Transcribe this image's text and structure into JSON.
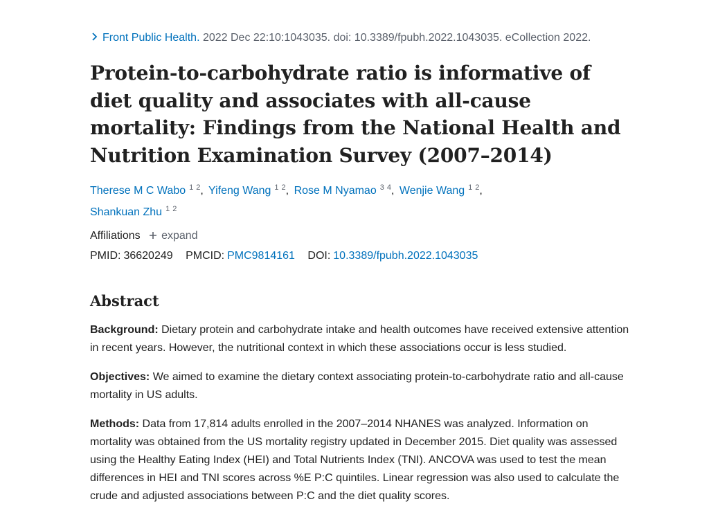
{
  "citation": {
    "journal": "Front Public Health.",
    "details": " 2022 Dec 22:10:1043035. doi: 10.3389/fpubh.2022.1043035. eCollection 2022."
  },
  "title": "Protein-to-carbohydrate ratio is informative of diet quality and associates with all-cause mortality: Findings from the National Health and Nutrition Examination Survey (2007–2014)",
  "authors": [
    {
      "name": "Therese M C Wabo",
      "affiliations": [
        "1",
        "2"
      ]
    },
    {
      "name": "Yifeng Wang",
      "affiliations": [
        "1",
        "2"
      ]
    },
    {
      "name": "Rose M Nyamao",
      "affiliations": [
        "3",
        "4"
      ]
    },
    {
      "name": "Wenjie Wang",
      "affiliations": [
        "1",
        "2"
      ]
    },
    {
      "name": "Shankuan Zhu",
      "affiliations": [
        "1",
        "2"
      ]
    }
  ],
  "affiliations": {
    "label": "Affiliations",
    "expand_label": "expand"
  },
  "identifiers": {
    "pmid_label": "PMID:",
    "pmid": "36620249",
    "pmcid_label": "PMCID:",
    "pmcid": "PMC9814161",
    "doi_label": "DOI:",
    "doi": "10.3389/fpubh.2022.1043035"
  },
  "abstract": {
    "heading": "Abstract",
    "sections": [
      {
        "label": "Background:",
        "text": " Dietary protein and carbohydrate intake and health outcomes have received extensive attention in recent years. However, the nutritional context in which these associations occur is less studied."
      },
      {
        "label": "Objectives:",
        "text": " We aimed to examine the dietary context associating protein-to-carbohydrate ratio and all-cause mortality in US adults."
      },
      {
        "label": "Methods:",
        "text": " Data from 17,814 adults enrolled in the 2007–2014 NHANES was analyzed. Information on mortality was obtained from the US mortality registry updated in December 2015. Diet quality was assessed using the Healthy Eating Index (HEI) and Total Nutrients Index (TNI). ANCOVA was used to test the mean differences in HEI and TNI scores across %E P:C quintiles. Linear regression was also used to calculate the crude and adjusted associations between P:C and the diet quality scores."
      }
    ]
  },
  "colors": {
    "link": "#0071bc",
    "text": "#212121",
    "muted": "#5b616b"
  }
}
